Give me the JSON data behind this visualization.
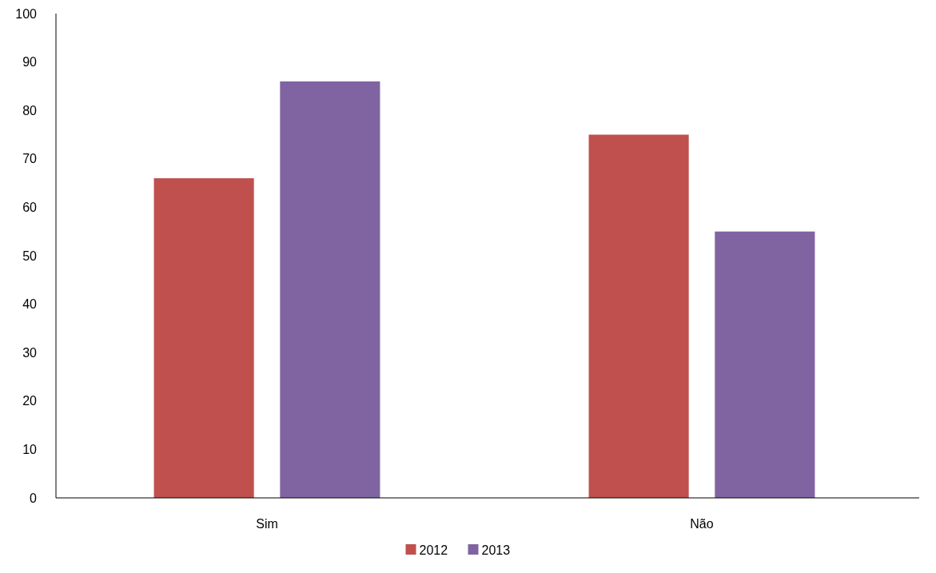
{
  "chart_data": {
    "type": "bar",
    "categories": [
      "Sim",
      "Não"
    ],
    "series": [
      {
        "name": "2012",
        "color": "#c0504d",
        "values": [
          66,
          75
        ]
      },
      {
        "name": "2013",
        "color": "#8064a2",
        "values": [
          86,
          55
        ]
      }
    ],
    "ylim": [
      0,
      100
    ],
    "yticks": [
      0,
      10,
      20,
      30,
      40,
      50,
      60,
      70,
      80,
      90,
      100
    ],
    "grid": false,
    "legend": "bottom"
  }
}
